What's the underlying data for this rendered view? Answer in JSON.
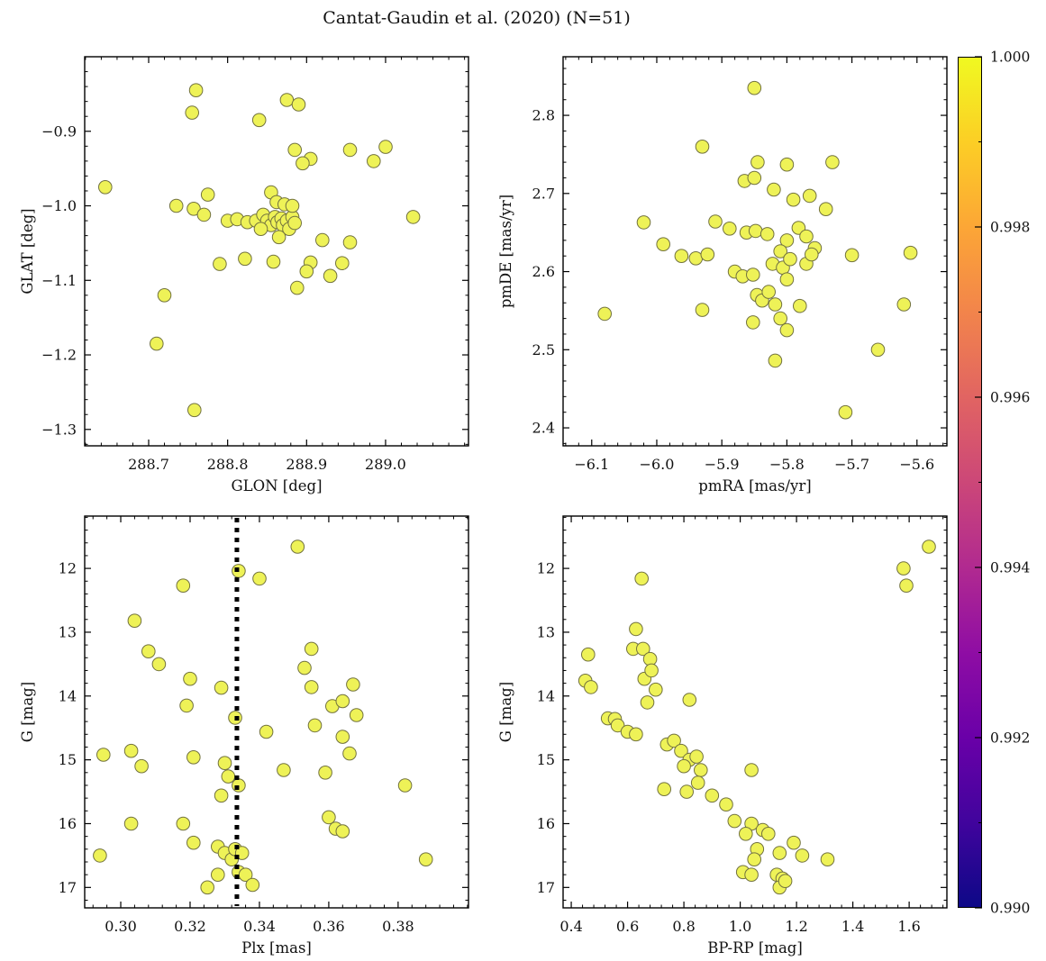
{
  "title": "Cantat-Gaudin et al. (2020) (N=51)",
  "style": {
    "marker_fill": "#eef257",
    "marker_edge": "#72723f",
    "frame_color": "#000000",
    "text_color": "#111111",
    "vline_color": "#000000",
    "background": "#ffffff"
  },
  "colorbar": {
    "vmin": 0.99,
    "vmax": 1.0,
    "tick_values": [
      1.0,
      0.998,
      0.996,
      0.994,
      0.992,
      0.99
    ],
    "tick_labels": [
      "1.000",
      "0.998",
      "0.996",
      "0.994",
      "0.992",
      "0.990"
    ],
    "colormap": "plasma_reversed_vertical",
    "gradient": [
      "#f0f921",
      "#fcce25",
      "#fca636",
      "#f2844b",
      "#e16462",
      "#cc4778",
      "#b12a90",
      "#8f0da4",
      "#6a00a8",
      "#41049d",
      "#0d0887"
    ]
  },
  "chart_data": [
    {
      "id": "glon-glat",
      "type": "scatter",
      "xlabel": "GLON [deg]",
      "ylabel": "GLAT [deg]",
      "xlim": [
        288.619,
        289.105
      ],
      "ylim": [
        -1.322,
        -0.8
      ],
      "xticks": [
        288.7,
        288.8,
        288.9,
        289.0
      ],
      "xtick_labels": [
        "288.7",
        "288.8",
        "288.9",
        "289.0"
      ],
      "yticks": [
        -0.9,
        -1.0,
        -1.1,
        -1.2,
        -1.3
      ],
      "ytick_labels": [
        "−0.9",
        "−1.0",
        "−1.1",
        "−1.2",
        "−1.3"
      ],
      "points": [
        [
          288.76,
          -0.845
        ],
        [
          288.755,
          -0.875
        ],
        [
          288.84,
          -0.885
        ],
        [
          288.875,
          -0.858
        ],
        [
          288.89,
          -0.864
        ],
        [
          288.885,
          -0.925
        ],
        [
          288.905,
          -0.937
        ],
        [
          288.895,
          -0.943
        ],
        [
          288.955,
          -0.925
        ],
        [
          288.985,
          -0.94
        ],
        [
          289.0,
          -0.921
        ],
        [
          288.645,
          -0.975
        ],
        [
          288.775,
          -0.985
        ],
        [
          288.757,
          -1.004
        ],
        [
          288.77,
          -1.012
        ],
        [
          288.8,
          -1.02
        ],
        [
          288.812,
          -1.018
        ],
        [
          288.825,
          -1.022
        ],
        [
          288.836,
          -1.02
        ],
        [
          288.845,
          -1.012
        ],
        [
          288.85,
          -1.02
        ],
        [
          288.855,
          -1.026
        ],
        [
          288.86,
          -1.015
        ],
        [
          288.863,
          -1.022
        ],
        [
          288.868,
          -1.017
        ],
        [
          288.87,
          -1.026
        ],
        [
          288.875,
          -1.02
        ],
        [
          288.878,
          -1.031
        ],
        [
          288.882,
          -1.015
        ],
        [
          288.885,
          -1.023
        ],
        [
          288.855,
          -0.982
        ],
        [
          288.862,
          -0.995
        ],
        [
          288.872,
          -0.998
        ],
        [
          288.882,
          -1.0
        ],
        [
          288.865,
          -1.042
        ],
        [
          288.92,
          -1.046
        ],
        [
          288.955,
          -1.049
        ],
        [
          289.035,
          -1.015
        ],
        [
          288.79,
          -1.078
        ],
        [
          288.822,
          -1.071
        ],
        [
          288.858,
          -1.075
        ],
        [
          288.888,
          -1.11
        ],
        [
          288.905,
          -1.076
        ],
        [
          288.93,
          -1.094
        ],
        [
          288.945,
          -1.077
        ],
        [
          288.72,
          -1.12
        ],
        [
          288.71,
          -1.185
        ],
        [
          288.758,
          -1.274
        ],
        [
          288.9,
          -1.088
        ],
        [
          288.842,
          -1.031
        ],
        [
          288.735,
          -1.0
        ]
      ]
    },
    {
      "id": "pmra-pmde",
      "type": "scatter",
      "xlabel": "pmRA [mas/yr]",
      "ylabel": "pmDE [mas/yr]",
      "xlim": [
        -6.144,
        -5.554
      ],
      "ylim": [
        2.377,
        2.875
      ],
      "xticks": [
        -6.1,
        -6.0,
        -5.9,
        -5.8,
        -5.7,
        -5.6
      ],
      "xtick_labels": [
        "−6.1",
        "−6.0",
        "−5.9",
        "−5.8",
        "−5.7",
        "−5.6"
      ],
      "yticks": [
        2.4,
        2.5,
        2.6,
        2.7,
        2.8
      ],
      "ytick_labels": [
        "2.4",
        "2.5",
        "2.6",
        "2.7",
        "2.8"
      ],
      "points": [
        [
          -5.85,
          2.835
        ],
        [
          -5.93,
          2.76
        ],
        [
          -5.845,
          2.74
        ],
        [
          -5.8,
          2.737
        ],
        [
          -5.73,
          2.74
        ],
        [
          -5.865,
          2.716
        ],
        [
          -5.85,
          2.72
        ],
        [
          -5.82,
          2.705
        ],
        [
          -5.79,
          2.692
        ],
        [
          -5.765,
          2.697
        ],
        [
          -5.74,
          2.68
        ],
        [
          -5.91,
          2.664
        ],
        [
          -5.888,
          2.655
        ],
        [
          -5.862,
          2.65
        ],
        [
          -5.848,
          2.652
        ],
        [
          -5.83,
          2.648
        ],
        [
          -5.8,
          2.64
        ],
        [
          -5.782,
          2.656
        ],
        [
          -5.77,
          2.645
        ],
        [
          -5.757,
          2.63
        ],
        [
          -6.02,
          2.663
        ],
        [
          -5.99,
          2.635
        ],
        [
          -5.962,
          2.62
        ],
        [
          -5.94,
          2.617
        ],
        [
          -5.922,
          2.622
        ],
        [
          -5.88,
          2.6
        ],
        [
          -5.868,
          2.594
        ],
        [
          -5.852,
          2.596
        ],
        [
          -5.822,
          2.61
        ],
        [
          -5.81,
          2.626
        ],
        [
          -5.806,
          2.605
        ],
        [
          -5.8,
          2.59
        ],
        [
          -5.795,
          2.616
        ],
        [
          -5.77,
          2.61
        ],
        [
          -5.762,
          2.622
        ],
        [
          -5.7,
          2.621
        ],
        [
          -5.61,
          2.624
        ],
        [
          -5.846,
          2.57
        ],
        [
          -5.838,
          2.563
        ],
        [
          -5.828,
          2.574
        ],
        [
          -5.818,
          2.558
        ],
        [
          -5.93,
          2.551
        ],
        [
          -6.08,
          2.546
        ],
        [
          -5.852,
          2.535
        ],
        [
          -5.81,
          2.54
        ],
        [
          -5.78,
          2.556
        ],
        [
          -5.62,
          2.558
        ],
        [
          -5.8,
          2.525
        ],
        [
          -5.818,
          2.486
        ],
        [
          -5.66,
          2.5
        ],
        [
          -5.71,
          2.42
        ]
      ]
    },
    {
      "id": "plx-g",
      "type": "scatter",
      "xlabel": "Plx [mas]",
      "ylabel": "G [mag]",
      "xlim": [
        0.2896,
        0.4003
      ],
      "ylim": [
        17.32,
        11.18
      ],
      "xticks": [
        0.3,
        0.32,
        0.34,
        0.36,
        0.38
      ],
      "xtick_labels": [
        "0.30",
        "0.32",
        "0.34",
        "0.36",
        "0.38"
      ],
      "yticks": [
        12,
        13,
        14,
        15,
        16,
        17
      ],
      "ytick_labels": [
        "12",
        "13",
        "14",
        "15",
        "16",
        "17"
      ],
      "vline": 0.3335,
      "points": [
        [
          0.351,
          11.66
        ],
        [
          0.334,
          12.04
        ],
        [
          0.34,
          12.16
        ],
        [
          0.318,
          12.27
        ],
        [
          0.304,
          12.82
        ],
        [
          0.355,
          13.26
        ],
        [
          0.308,
          13.3
        ],
        [
          0.311,
          13.5
        ],
        [
          0.353,
          13.56
        ],
        [
          0.355,
          13.86
        ],
        [
          0.32,
          13.73
        ],
        [
          0.329,
          13.87
        ],
        [
          0.367,
          13.82
        ],
        [
          0.319,
          14.15
        ],
        [
          0.333,
          14.34
        ],
        [
          0.361,
          14.16
        ],
        [
          0.364,
          14.08
        ],
        [
          0.368,
          14.3
        ],
        [
          0.356,
          14.46
        ],
        [
          0.342,
          14.56
        ],
        [
          0.364,
          14.64
        ],
        [
          0.366,
          14.9
        ],
        [
          0.295,
          14.92
        ],
        [
          0.303,
          14.86
        ],
        [
          0.306,
          15.1
        ],
        [
          0.321,
          14.96
        ],
        [
          0.33,
          15.05
        ],
        [
          0.331,
          15.26
        ],
        [
          0.334,
          15.4
        ],
        [
          0.347,
          15.16
        ],
        [
          0.359,
          15.2
        ],
        [
          0.382,
          15.4
        ],
        [
          0.303,
          16.0
        ],
        [
          0.318,
          16.0
        ],
        [
          0.321,
          16.3
        ],
        [
          0.328,
          16.36
        ],
        [
          0.33,
          16.46
        ],
        [
          0.332,
          16.56
        ],
        [
          0.333,
          16.4
        ],
        [
          0.335,
          16.46
        ],
        [
          0.334,
          16.76
        ],
        [
          0.336,
          16.8
        ],
        [
          0.328,
          16.8
        ],
        [
          0.325,
          17.0
        ],
        [
          0.294,
          16.5
        ],
        [
          0.36,
          15.9
        ],
        [
          0.362,
          16.08
        ],
        [
          0.364,
          16.12
        ],
        [
          0.388,
          16.56
        ],
        [
          0.338,
          16.96
        ],
        [
          0.329,
          15.56
        ]
      ]
    },
    {
      "id": "bprp-g",
      "type": "scatter",
      "xlabel": "BP-RP [mag]",
      "ylabel": "G [mag]",
      "xlim": [
        0.371,
        1.734
      ],
      "ylim": [
        17.32,
        11.18
      ],
      "xticks": [
        0.4,
        0.6,
        0.8,
        1.0,
        1.2,
        1.4,
        1.6
      ],
      "xtick_labels": [
        "0.4",
        "0.6",
        "0.8",
        "1.0",
        "1.2",
        "1.4",
        "1.6"
      ],
      "yticks": [
        12,
        13,
        14,
        15,
        16,
        17
      ],
      "ytick_labels": [
        "12",
        "13",
        "14",
        "15",
        "16",
        "17"
      ],
      "points": [
        [
          1.67,
          11.66
        ],
        [
          1.58,
          12.0
        ],
        [
          1.59,
          12.27
        ],
        [
          0.65,
          12.16
        ],
        [
          0.63,
          12.95
        ],
        [
          0.62,
          13.26
        ],
        [
          0.655,
          13.26
        ],
        [
          0.46,
          13.35
        ],
        [
          0.68,
          13.42
        ],
        [
          0.45,
          13.76
        ],
        [
          0.47,
          13.86
        ],
        [
          0.66,
          13.73
        ],
        [
          0.685,
          13.6
        ],
        [
          0.7,
          13.9
        ],
        [
          0.67,
          14.1
        ],
        [
          0.82,
          14.06
        ],
        [
          0.53,
          14.35
        ],
        [
          0.555,
          14.36
        ],
        [
          0.565,
          14.46
        ],
        [
          0.6,
          14.56
        ],
        [
          0.63,
          14.6
        ],
        [
          0.74,
          14.76
        ],
        [
          0.765,
          14.7
        ],
        [
          0.79,
          14.86
        ],
        [
          0.82,
          15.0
        ],
        [
          0.845,
          14.95
        ],
        [
          0.8,
          15.1
        ],
        [
          0.86,
          15.16
        ],
        [
          1.04,
          15.16
        ],
        [
          0.73,
          15.46
        ],
        [
          0.81,
          15.5
        ],
        [
          0.9,
          15.56
        ],
        [
          0.95,
          15.7
        ],
        [
          0.98,
          15.96
        ],
        [
          1.04,
          16.0
        ],
        [
          1.08,
          16.1
        ],
        [
          1.02,
          16.16
        ],
        [
          1.1,
          16.16
        ],
        [
          1.19,
          16.3
        ],
        [
          1.06,
          16.4
        ],
        [
          1.14,
          16.46
        ],
        [
          1.22,
          16.5
        ],
        [
          1.31,
          16.56
        ],
        [
          1.05,
          16.56
        ],
        [
          1.01,
          16.76
        ],
        [
          1.04,
          16.8
        ],
        [
          1.13,
          16.8
        ],
        [
          1.15,
          16.86
        ],
        [
          1.14,
          17.0
        ],
        [
          1.16,
          16.9
        ],
        [
          0.85,
          15.36
        ]
      ]
    }
  ]
}
